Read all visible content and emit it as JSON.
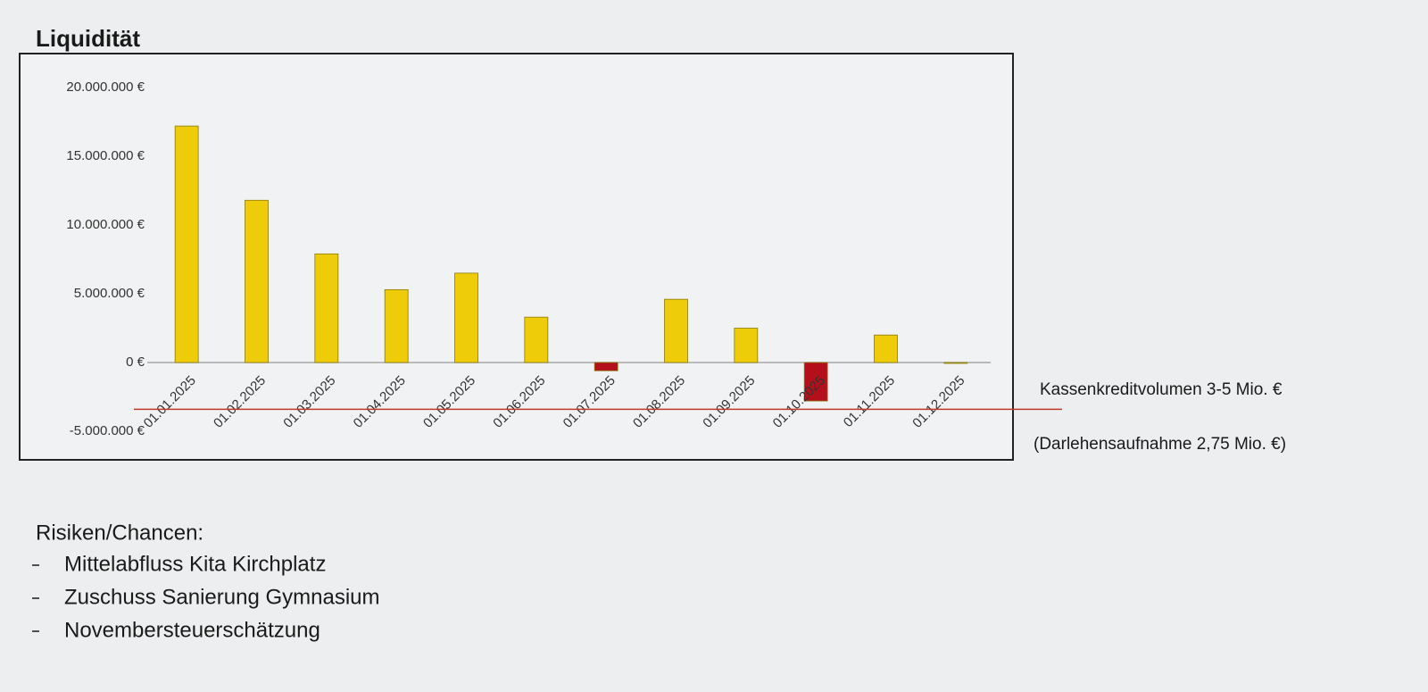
{
  "chart_data": {
    "type": "bar",
    "title": "Liquidität",
    "categories": [
      "01.01.2025",
      "01.02.2025",
      "01.03.2025",
      "01.04.2025",
      "01.05.2025",
      "01.06.2025",
      "01.07.2025",
      "01.08.2025",
      "01.09.2025",
      "01.10.2025",
      "01.11.2025",
      "01.12.2025"
    ],
    "values": [
      17200000,
      11800000,
      7900000,
      5300000,
      6500000,
      3300000,
      -600000,
      4600000,
      2500000,
      -2800000,
      2000000,
      0
    ],
    "colors": [
      "#efcc0a",
      "#efcc0a",
      "#efcc0a",
      "#efcc0a",
      "#efcc0a",
      "#efcc0a",
      "#b3101c",
      "#efcc0a",
      "#efcc0a",
      "#b3101c",
      "#efcc0a",
      "#efcc0a"
    ],
    "ylim": [
      -5000000,
      20000000
    ],
    "yticks": [
      {
        "value": -5000000,
        "label": "-5.000.000 €"
      },
      {
        "value": 0,
        "label": "0 €"
      },
      {
        "value": 5000000,
        "label": "5.000.000 €"
      },
      {
        "value": 10000000,
        "label": "10.000.000 €"
      },
      {
        "value": 15000000,
        "label": "15.000.000 €"
      },
      {
        "value": 20000000,
        "label": "20.000.000 €"
      }
    ],
    "reference_line": {
      "value": -3400000,
      "color": "#c0392b",
      "label": "Kassenkreditvolumen 3-5 Mio. €"
    },
    "annotation": "(Darlehensaufnahme 2,75 Mio. €)"
  },
  "notes": {
    "heading": "Risiken/Chancen:",
    "items": [
      "Mittelabfluss Kita Kirchplatz",
      "Zuschuss Sanierung Gymnasium",
      "Novembersteuerschätzung"
    ]
  }
}
